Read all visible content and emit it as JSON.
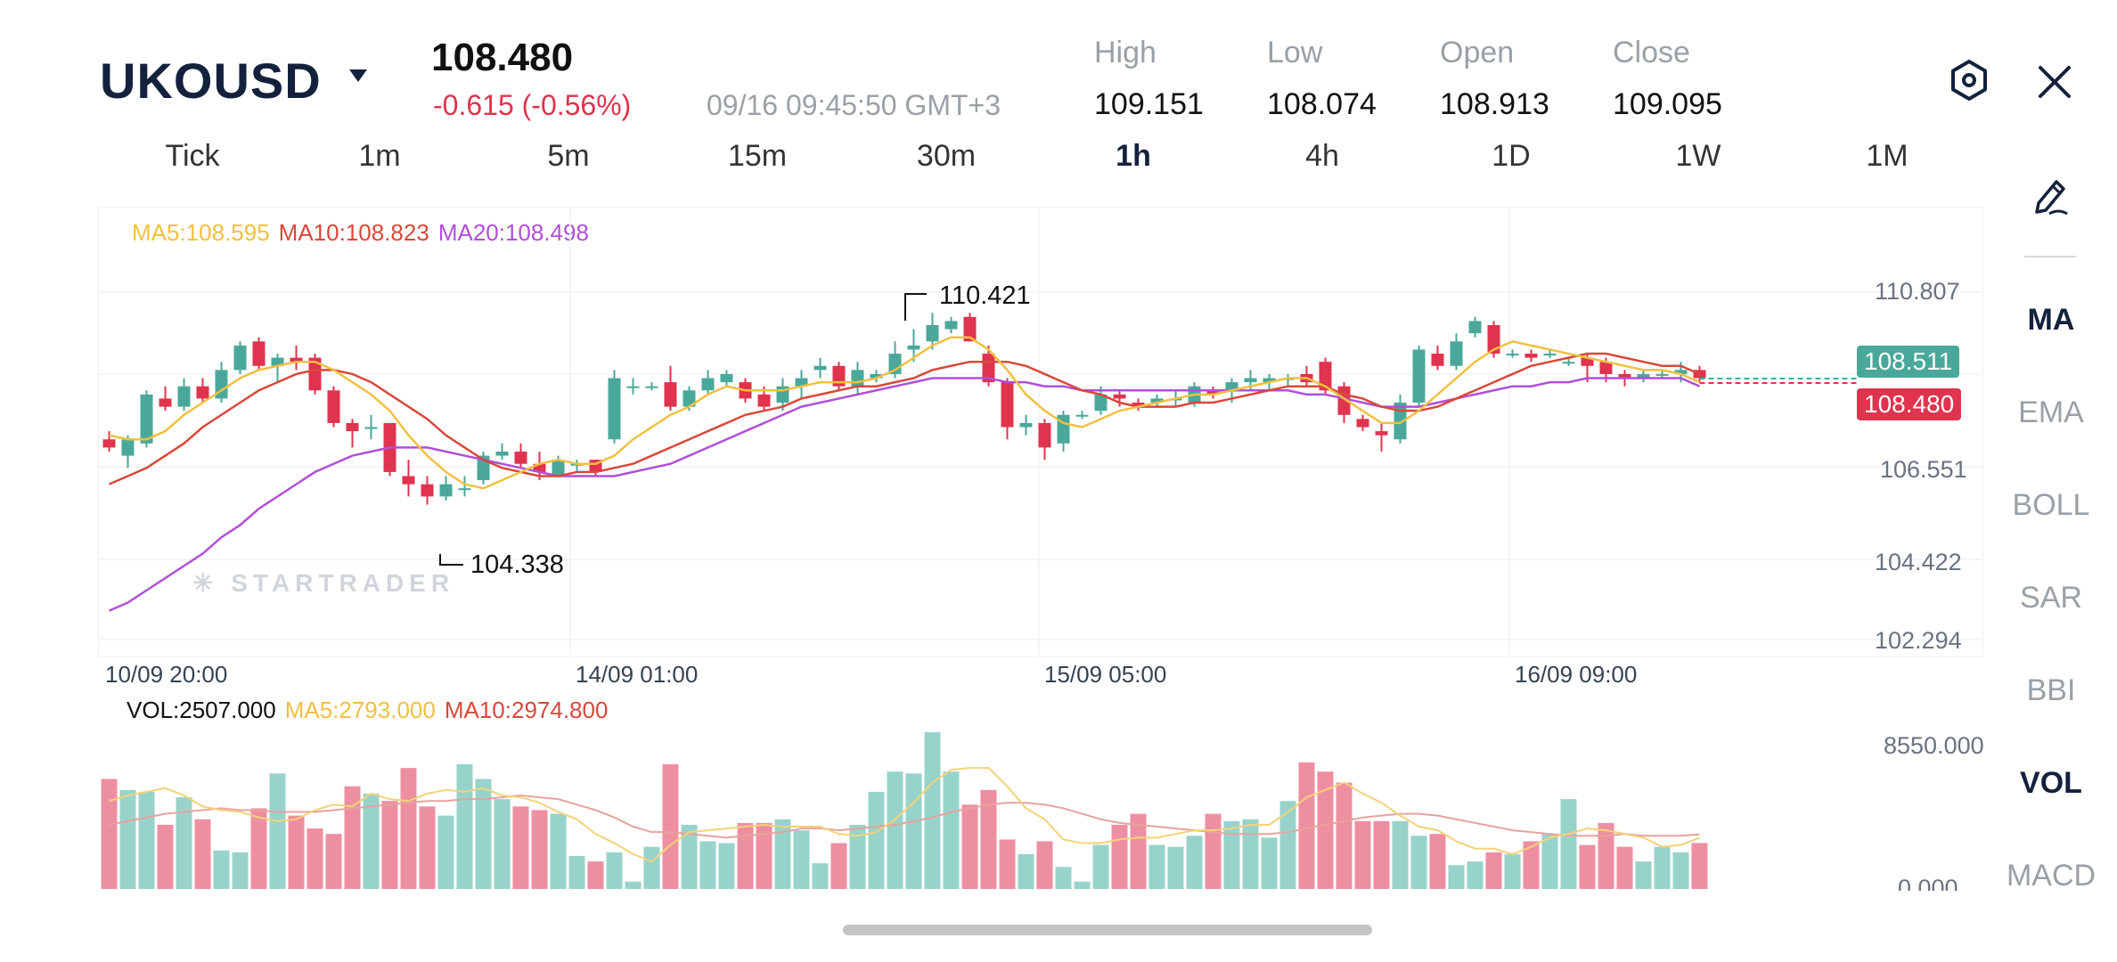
{
  "header": {
    "symbol": "UKOUSD",
    "price": "108.480",
    "change": "-0.615 (-0.56%)",
    "timestamp": "09/16 09:45:50 GMT+3",
    "ohlc": [
      {
        "label": "High",
        "value": "109.151"
      },
      {
        "label": "Low",
        "value": "108.074"
      },
      {
        "label": "Open",
        "value": "108.913"
      },
      {
        "label": "Close",
        "value": "109.095"
      }
    ]
  },
  "timeframes": [
    "Tick",
    "1m",
    "5m",
    "15m",
    "30m",
    "1h",
    "4h",
    "1D",
    "1W",
    "1M"
  ],
  "active_timeframe": "1h",
  "indicators": [
    "MA",
    "EMA",
    "BOLL",
    "SAR",
    "BBI",
    "VOL",
    "MACD"
  ],
  "active_indicators": [
    "MA",
    "VOL"
  ],
  "icons": {
    "chart_settings": "hexagon-settings-icon",
    "close": "close-icon",
    "draw": "pencil-draw-icon"
  },
  "colors": {
    "up": "#4aa89a",
    "down": "#e0334d",
    "ma5": "#f0c040",
    "ma10": "#d9483b",
    "ma20": "#b04fd9",
    "navy": "#14213d"
  },
  "main_chart": {
    "legend": {
      "ma5": "MA5:108.595",
      "ma10": "MA10:108.823",
      "ma20": "MA20:108.498"
    },
    "y_ticks": [
      "110.807",
      "106.551",
      "104.422",
      "102.294"
    ],
    "current_price_tag": "108.480",
    "last_close_tag": "108.511",
    "high_marker": "110.421",
    "low_marker": "104.338",
    "watermark": "STARTRADER",
    "x_ticks": [
      "10/09 20:00",
      "14/09 01:00",
      "15/09 05:00",
      "16/09 09:00"
    ]
  },
  "volume_chart": {
    "legend": {
      "vol": "VOL:2507.000",
      "ma5": "MA5:2793.000",
      "ma10": "MA10:2974.800"
    },
    "y_ticks": [
      "8550.000",
      "0.000"
    ]
  },
  "chart_data": {
    "type": "candlestick",
    "ylim": [
      102.294,
      110.807
    ],
    "candles": [
      [
        107.2,
        107.4,
        106.9,
        107.0
      ],
      [
        106.8,
        107.3,
        106.5,
        107.2
      ],
      [
        107.1,
        108.4,
        107.0,
        108.3
      ],
      [
        108.2,
        108.5,
        107.9,
        108.0
      ],
      [
        108.0,
        108.7,
        107.9,
        108.5
      ],
      [
        108.5,
        108.7,
        108.1,
        108.2
      ],
      [
        108.2,
        109.1,
        108.1,
        108.9
      ],
      [
        108.9,
        109.6,
        108.8,
        109.5
      ],
      [
        109.6,
        109.7,
        108.9,
        109.0
      ],
      [
        109.0,
        109.3,
        108.6,
        109.2
      ],
      [
        109.2,
        109.5,
        108.9,
        109.1
      ],
      [
        109.2,
        109.3,
        108.3,
        108.4
      ],
      [
        108.4,
        108.5,
        107.5,
        107.6
      ],
      [
        107.6,
        107.7,
        107.0,
        107.4
      ],
      [
        107.5,
        107.8,
        107.2,
        107.5
      ],
      [
        107.6,
        107.6,
        106.3,
        106.4
      ],
      [
        106.3,
        106.7,
        105.8,
        106.1
      ],
      [
        106.1,
        106.3,
        105.6,
        105.8
      ],
      [
        105.8,
        106.3,
        105.7,
        106.1
      ],
      [
        106.0,
        106.3,
        105.8,
        106.0
      ],
      [
        106.2,
        106.9,
        106.1,
        106.8
      ],
      [
        106.8,
        107.1,
        106.7,
        106.9
      ],
      [
        106.9,
        107.1,
        106.5,
        106.6
      ],
      [
        106.6,
        106.9,
        106.2,
        106.4
      ],
      [
        106.3,
        106.8,
        106.3,
        106.7
      ],
      [
        106.6,
        106.7,
        106.4,
        106.6
      ],
      [
        106.7,
        106.7,
        106.3,
        106.4
      ],
      [
        107.2,
        108.9,
        107.1,
        108.7
      ],
      [
        108.5,
        108.7,
        108.3,
        108.5
      ],
      [
        108.5,
        108.6,
        108.4,
        108.5
      ],
      [
        108.6,
        109.0,
        107.9,
        108.0
      ],
      [
        108.0,
        108.5,
        107.9,
        108.4
      ],
      [
        108.4,
        108.9,
        108.3,
        108.7
      ],
      [
        108.6,
        108.9,
        108.5,
        108.8
      ],
      [
        108.6,
        108.7,
        108.1,
        108.2
      ],
      [
        108.3,
        108.5,
        107.9,
        108.0
      ],
      [
        108.1,
        108.7,
        107.9,
        108.5
      ],
      [
        108.5,
        108.9,
        108.2,
        108.7
      ],
      [
        108.9,
        109.2,
        108.7,
        109.0
      ],
      [
        109.0,
        109.1,
        108.4,
        108.5
      ],
      [
        108.5,
        109.1,
        108.3,
        108.9
      ],
      [
        108.7,
        108.9,
        108.6,
        108.8
      ],
      [
        108.8,
        109.6,
        108.7,
        109.3
      ],
      [
        109.4,
        109.9,
        109.1,
        109.5
      ],
      [
        109.6,
        110.3,
        109.4,
        110.0
      ],
      [
        109.9,
        110.2,
        109.8,
        110.1
      ],
      [
        110.2,
        110.3,
        109.6,
        109.6
      ],
      [
        109.3,
        109.5,
        108.5,
        108.6
      ],
      [
        108.6,
        108.7,
        107.2,
        107.5
      ],
      [
        107.5,
        107.8,
        107.3,
        107.6
      ],
      [
        107.6,
        107.7,
        106.7,
        107.0
      ],
      [
        107.1,
        107.9,
        106.9,
        107.8
      ],
      [
        107.8,
        107.9,
        107.7,
        107.8
      ],
      [
        107.9,
        108.5,
        107.8,
        108.3
      ],
      [
        108.3,
        108.4,
        108.0,
        108.2
      ],
      [
        108.1,
        108.2,
        107.9,
        108.0
      ],
      [
        108.1,
        108.3,
        108.0,
        108.2
      ],
      [
        108.2,
        108.4,
        108.0,
        108.2
      ],
      [
        108.1,
        108.6,
        108.0,
        108.5
      ],
      [
        108.4,
        108.5,
        108.2,
        108.3
      ],
      [
        108.4,
        108.7,
        108.1,
        108.6
      ],
      [
        108.6,
        108.9,
        108.4,
        108.7
      ],
      [
        108.6,
        108.8,
        108.4,
        108.7
      ],
      [
        108.7,
        108.8,
        108.5,
        108.7
      ],
      [
        108.8,
        109.0,
        108.5,
        108.6
      ],
      [
        109.1,
        109.2,
        108.3,
        108.4
      ],
      [
        108.5,
        108.6,
        107.6,
        107.8
      ],
      [
        107.7,
        107.8,
        107.4,
        107.5
      ],
      [
        107.4,
        107.6,
        106.9,
        107.3
      ],
      [
        107.2,
        108.3,
        107.1,
        108.1
      ],
      [
        108.1,
        109.5,
        108.0,
        109.4
      ],
      [
        109.3,
        109.5,
        108.9,
        109.0
      ],
      [
        109.0,
        109.8,
        108.9,
        109.6
      ],
      [
        109.8,
        110.2,
        109.7,
        110.1
      ],
      [
        110.0,
        110.1,
        109.2,
        109.3
      ],
      [
        109.3,
        109.4,
        109.2,
        109.3
      ],
      [
        109.3,
        109.4,
        109.1,
        109.2
      ],
      [
        109.3,
        109.4,
        109.2,
        109.3
      ],
      [
        109.1,
        109.2,
        109.0,
        109.1
      ],
      [
        109.2,
        109.3,
        108.6,
        109.0
      ],
      [
        109.1,
        109.2,
        108.6,
        108.8
      ],
      [
        108.8,
        108.9,
        108.5,
        108.7
      ],
      [
        108.7,
        108.9,
        108.6,
        108.8
      ],
      [
        108.8,
        108.9,
        108.7,
        108.8
      ],
      [
        108.8,
        109.1,
        108.6,
        108.9
      ],
      [
        108.9,
        109.0,
        108.6,
        108.7
      ]
    ],
    "ma5": [
      107.3,
      107.2,
      107.2,
      107.4,
      107.8,
      108.1,
      108.4,
      108.7,
      108.9,
      109.0,
      109.1,
      109.1,
      108.9,
      108.6,
      108.3,
      107.9,
      107.3,
      106.8,
      106.4,
      106.1,
      106.0,
      106.2,
      106.4,
      106.6,
      106.7,
      106.6,
      106.6,
      106.8,
      107.2,
      107.5,
      107.8,
      108.0,
      108.3,
      108.5,
      108.4,
      108.4,
      108.4,
      108.5,
      108.6,
      108.6,
      108.6,
      108.7,
      108.9,
      109.2,
      109.5,
      109.7,
      109.7,
      109.4,
      108.9,
      108.3,
      107.9,
      107.6,
      107.5,
      107.7,
      107.9,
      108.0,
      108.1,
      108.2,
      108.3,
      108.3,
      108.4,
      108.5,
      108.6,
      108.7,
      108.7,
      108.5,
      108.2,
      107.9,
      107.6,
      107.6,
      107.9,
      108.3,
      108.7,
      109.1,
      109.4,
      109.6,
      109.5,
      109.4,
      109.3,
      109.2,
      109.1,
      109.0,
      108.9,
      108.9,
      108.8,
      108.6
    ],
    "ma10": [
      106.1,
      106.3,
      106.5,
      106.8,
      107.1,
      107.5,
      107.8,
      108.1,
      108.4,
      108.6,
      108.8,
      108.9,
      108.9,
      108.8,
      108.6,
      108.3,
      108.0,
      107.7,
      107.3,
      107.0,
      106.7,
      106.5,
      106.4,
      106.3,
      106.3,
      106.4,
      106.4,
      106.5,
      106.6,
      106.8,
      107.0,
      107.2,
      107.4,
      107.6,
      107.8,
      107.9,
      108.0,
      108.2,
      108.3,
      108.4,
      108.5,
      108.5,
      108.6,
      108.7,
      108.9,
      109.0,
      109.1,
      109.1,
      109.1,
      109.0,
      108.8,
      108.6,
      108.4,
      108.3,
      108.1,
      108.0,
      108.0,
      108.0,
      108.1,
      108.1,
      108.2,
      108.3,
      108.4,
      108.5,
      108.5,
      108.5,
      108.3,
      108.2,
      108.0,
      107.9,
      107.9,
      108.0,
      108.2,
      108.4,
      108.6,
      108.8,
      109.0,
      109.1,
      109.2,
      109.3,
      109.3,
      109.2,
      109.1,
      109.0,
      109.0,
      108.8
    ],
    "ma20": [
      103.0,
      103.2,
      103.5,
      103.8,
      104.1,
      104.4,
      104.8,
      105.1,
      105.5,
      105.8,
      106.1,
      106.4,
      106.6,
      106.8,
      106.9,
      107.0,
      107.0,
      107.0,
      106.9,
      106.8,
      106.7,
      106.6,
      106.5,
      106.4,
      106.3,
      106.3,
      106.3,
      106.3,
      106.4,
      106.5,
      106.6,
      106.8,
      107.0,
      107.2,
      107.4,
      107.6,
      107.8,
      108.0,
      108.1,
      108.2,
      108.3,
      108.4,
      108.5,
      108.6,
      108.7,
      108.7,
      108.7,
      108.7,
      108.6,
      108.6,
      108.5,
      108.5,
      108.4,
      108.4,
      108.4,
      108.4,
      108.4,
      108.4,
      108.4,
      108.4,
      108.4,
      108.4,
      108.4,
      108.4,
      108.3,
      108.3,
      108.2,
      108.1,
      108.0,
      108.0,
      108.0,
      108.1,
      108.2,
      108.3,
      108.4,
      108.5,
      108.5,
      108.6,
      108.6,
      108.7,
      108.7,
      108.7,
      108.7,
      108.7,
      108.7,
      108.5
    ],
    "volume_ylim": [
      0,
      8550
    ],
    "volume": [
      6000,
      5400,
      5300,
      3500,
      5000,
      3800,
      2100,
      2000,
      4400,
      6300,
      4000,
      3300,
      3000,
      5600,
      5200,
      4800,
      6600,
      4500,
      4000,
      6800,
      6000,
      4900,
      4500,
      4300,
      4100,
      1800,
      1500,
      2000,
      400,
      2300,
      6800,
      3500,
      2600,
      2500,
      3600,
      3600,
      3800,
      3200,
      1400,
      2500,
      3500,
      5300,
      6400,
      6300,
      8550,
      6400,
      4600,
      5400,
      2700,
      1900,
      2600,
      1200,
      400,
      2400,
      3500,
      4100,
      2400,
      2300,
      2900,
      4100,
      3700,
      3800,
      2800,
      4800,
      6900,
      6400,
      5800,
      3700,
      3700,
      3700,
      2900,
      3000,
      1300,
      1500,
      2000,
      1900,
      2600,
      3000,
      4900,
      2400,
      3600,
      2300,
      1500,
      2300,
      2000,
      2507
    ],
    "volume_ma5": [
      4800,
      5100,
      5300,
      5500,
      5100,
      4500,
      4300,
      4200,
      3900,
      3700,
      3800,
      4300,
      4600,
      4500,
      5200,
      4900,
      4800,
      5200,
      5400,
      5300,
      5500,
      5100,
      5000,
      4700,
      4200,
      3800,
      3000,
      2500,
      1900,
      1500,
      2400,
      3100,
      3200,
      3300,
      3400,
      3500,
      3400,
      3400,
      3400,
      3000,
      2900,
      3100,
      3800,
      4700,
      5800,
      6500,
      6600,
      6600,
      5600,
      4400,
      3800,
      2700,
      2500,
      2500,
      2700,
      2800,
      2800,
      3000,
      3200,
      3200,
      3300,
      3500,
      3500,
      4200,
      5000,
      5400,
      5800,
      5200,
      4700,
      4000,
      3400,
      3200,
      2600,
      2200,
      2200,
      1900,
      2300,
      2800,
      3000,
      3300,
      3200,
      3000,
      2800,
      2300,
      2400,
      2793
    ],
    "volume_ma10": [
      3500,
      3700,
      3900,
      4100,
      4200,
      4300,
      4400,
      4300,
      4300,
      4200,
      4200,
      4200,
      4300,
      4400,
      4500,
      4600,
      4700,
      4800,
      4800,
      4900,
      4900,
      5000,
      5100,
      5000,
      4900,
      4600,
      4300,
      3900,
      3400,
      3100,
      3100,
      3000,
      2900,
      2800,
      2900,
      3000,
      3100,
      3300,
      3300,
      3200,
      3300,
      3400,
      3500,
      3700,
      3900,
      4200,
      4400,
      4600,
      4700,
      4700,
      4600,
      4400,
      4100,
      3800,
      3600,
      3500,
      3400,
      3300,
      3200,
      3100,
      3000,
      3000,
      3000,
      3100,
      3300,
      3500,
      3700,
      3900,
      4000,
      4100,
      4100,
      4000,
      3800,
      3600,
      3400,
      3200,
      3100,
      3000,
      2900,
      2900,
      2900,
      3000,
      2900,
      2900,
      2900,
      2975
    ]
  }
}
